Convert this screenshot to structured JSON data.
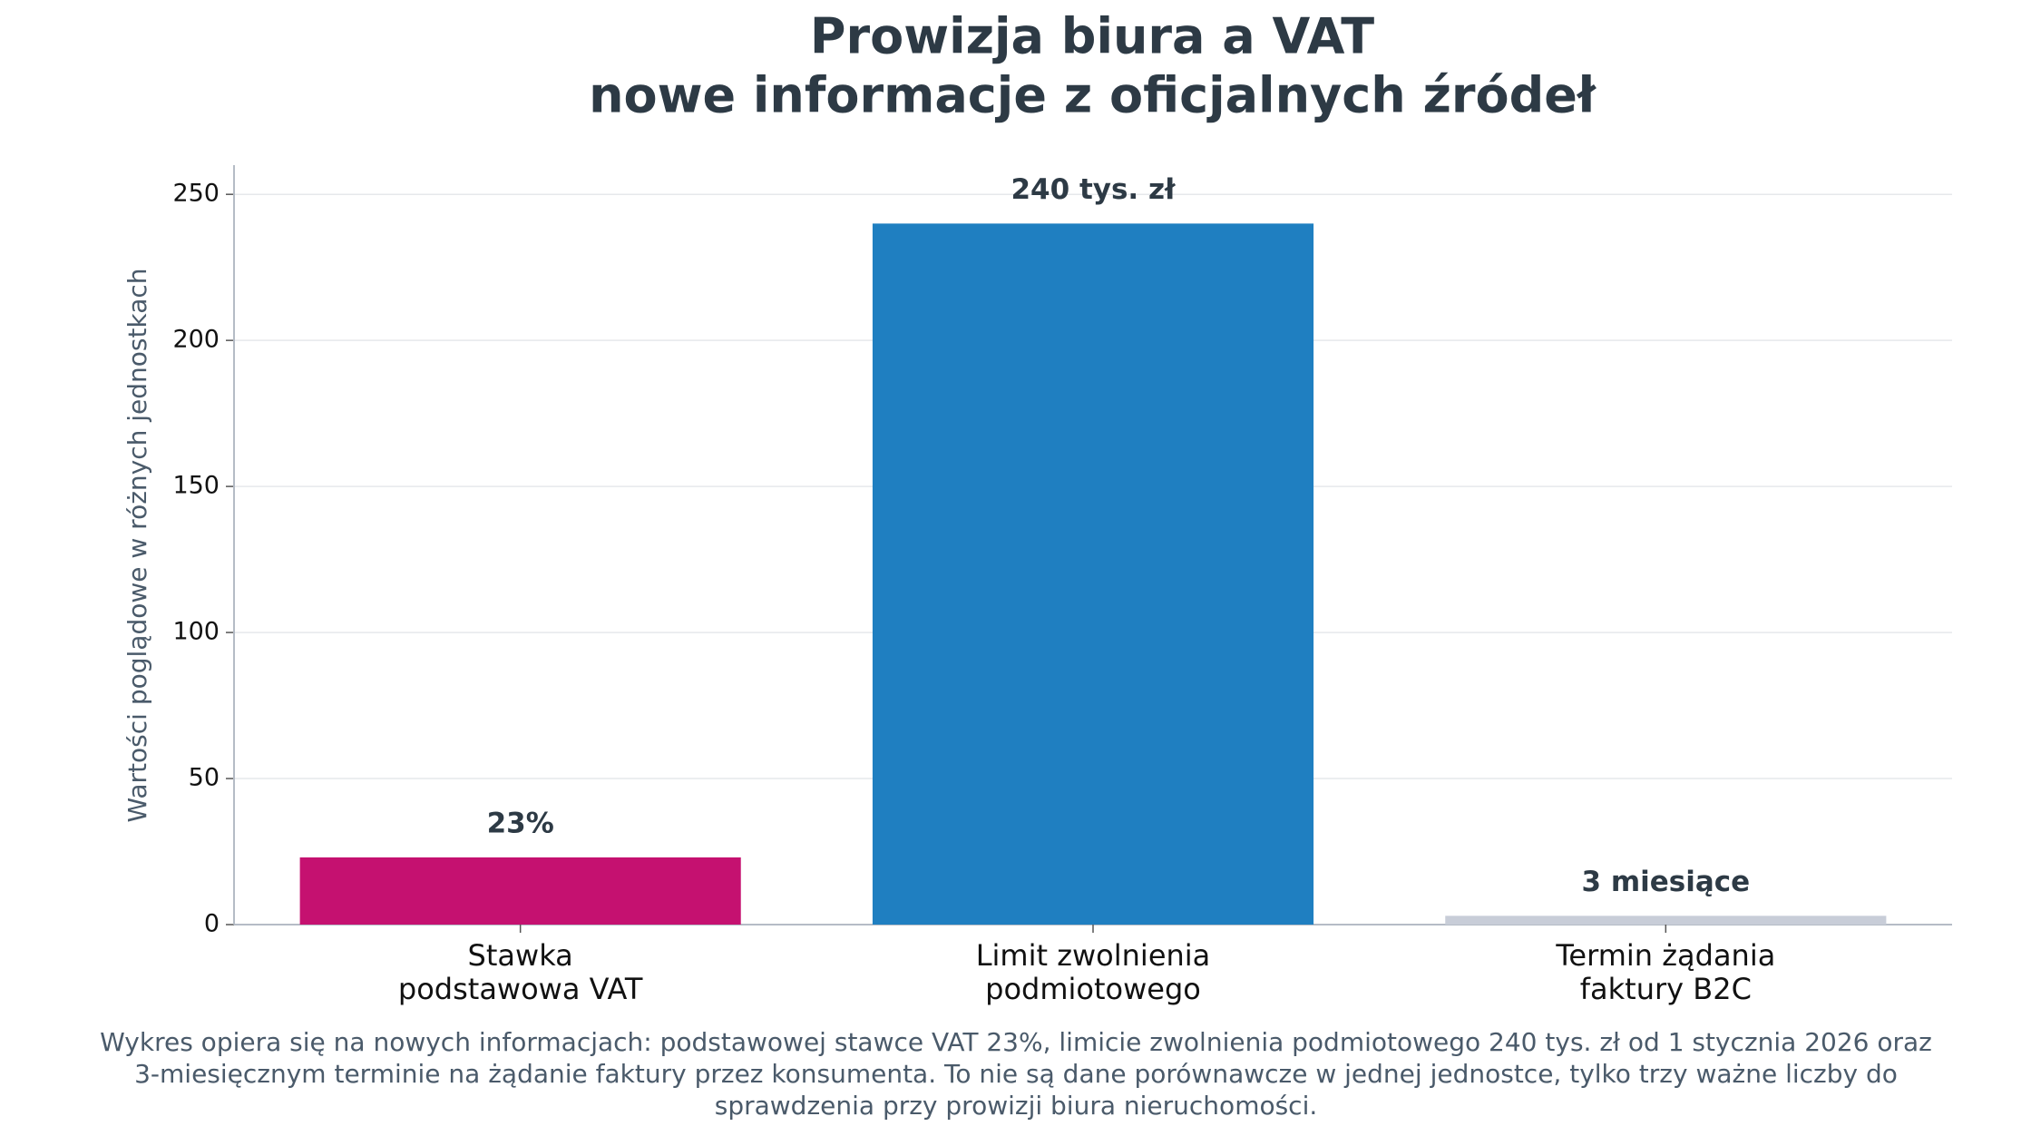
{
  "chart_data": {
    "type": "bar",
    "title": [
      "Prowizja biura a VAT",
      "nowe informacje z oficjalnych źródeł"
    ],
    "y_label": "Wartości poglądowe w różnych jednostkach",
    "categories": [
      "Stawka\npodstawowa VAT",
      "Limit zwolnienia\npodmiotowego",
      "Termin żądania\nfaktury B2C"
    ],
    "values": [
      23,
      240,
      3
    ],
    "value_labels": [
      "23%",
      "240 tys. zł",
      "3 miesiące"
    ],
    "colors": [
      "#c51170",
      "#1f7fc1",
      "#c8cdd8"
    ],
    "ylim": [
      0,
      260
    ],
    "yticks": [
      0,
      50,
      100,
      150,
      200,
      250
    ],
    "grid": true,
    "caption": [
      "Wykres opiera się na nowych informacjach: podstawowej stawce VAT 23%, limicie zwolnienia podmiotowego 240 tys. zł od 1 stycznia 2026 oraz",
      "3-miesięcznym terminie na żądanie faktury przez konsumenta. To nie są dane porównawcze w jednej jednostce, tylko trzy ważne liczby do",
      "sprawdzenia przy prowizji biura nieruchomości."
    ]
  }
}
